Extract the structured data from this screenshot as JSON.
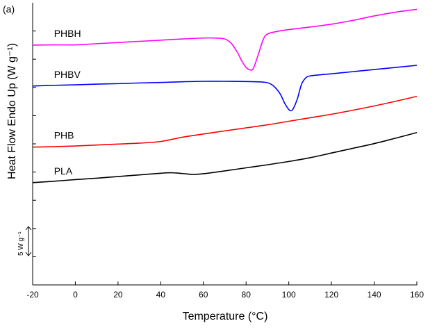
{
  "chart_data": {
    "type": "line",
    "panel_label": "(a)",
    "xlabel": "Temperature (°C)",
    "ylabel": "Heat Flow Endo Up (W g⁻¹)",
    "xlim": [
      -20,
      160
    ],
    "x_ticks": [
      -20,
      0,
      20,
      40,
      60,
      80,
      100,
      120,
      140,
      160
    ],
    "y_ticks_count": 9,
    "y_numeric_labels": false,
    "scale_bar": {
      "label": "5 W g⁻¹",
      "size": 5
    },
    "ylim": [
      0,
      120
    ],
    "series": [
      {
        "name": "PHBH",
        "color": "#ff00ff",
        "x": [
          -20,
          -10,
          0,
          10,
          20,
          30,
          40,
          50,
          60,
          65,
          70,
          73,
          76,
          78,
          80,
          82,
          83,
          84,
          86,
          88,
          90,
          95,
          100,
          110,
          120,
          130,
          140,
          150,
          160
        ],
        "y": [
          102.0,
          102.1,
          102.1,
          102.6,
          103.1,
          103.6,
          104.1,
          104.6,
          105.0,
          105.0,
          104.6,
          102.8,
          98.8,
          95.2,
          92.5,
          91.4,
          91.6,
          93.4,
          98.8,
          104.3,
          106.7,
          107.9,
          108.6,
          109.7,
          110.9,
          112.5,
          114.4,
          116.0,
          117.2
        ]
      },
      {
        "name": "PHBV",
        "color": "#0000ff",
        "x": [
          -20,
          -10,
          0,
          10,
          20,
          30,
          40,
          50,
          60,
          70,
          80,
          85,
          90,
          93,
          96,
          98,
          100,
          101,
          102,
          104,
          106,
          108,
          110,
          115,
          120,
          130,
          140,
          150,
          160
        ],
        "y": [
          84.6,
          84.9,
          85.1,
          85.4,
          85.6,
          85.9,
          86.1,
          86.4,
          86.6,
          86.6,
          86.5,
          86.4,
          86.0,
          84.5,
          81.2,
          77.4,
          74.6,
          74.1,
          74.8,
          79.1,
          85.4,
          88.1,
          88.9,
          89.4,
          89.8,
          90.7,
          91.6,
          92.5,
          93.4
        ]
      },
      {
        "name": "PHB",
        "color": "#ff0000",
        "x": [
          -20,
          -10,
          0,
          10,
          20,
          30,
          40,
          50,
          60,
          70,
          80,
          90,
          100,
          110,
          120,
          130,
          140,
          150,
          160
        ],
        "y": [
          58.6,
          58.8,
          59.1,
          59.5,
          59.9,
          60.3,
          61.0,
          62.8,
          64.2,
          65.5,
          66.8,
          68.1,
          69.6,
          71.1,
          72.6,
          74.3,
          76.1,
          78.1,
          80.2
        ]
      },
      {
        "name": "PLA",
        "color": "#000000",
        "x": [
          -20,
          -10,
          0,
          10,
          20,
          30,
          40,
          45,
          50,
          55,
          60,
          70,
          80,
          90,
          100,
          110,
          120,
          130,
          140,
          150,
          160
        ],
        "y": [
          43.5,
          44.1,
          44.8,
          45.4,
          46.1,
          46.8,
          47.5,
          47.7,
          47.4,
          47.0,
          47.3,
          48.5,
          49.8,
          51.1,
          52.5,
          54.1,
          56.1,
          58.1,
          60.1,
          62.4,
          64.8
        ]
      }
    ]
  }
}
